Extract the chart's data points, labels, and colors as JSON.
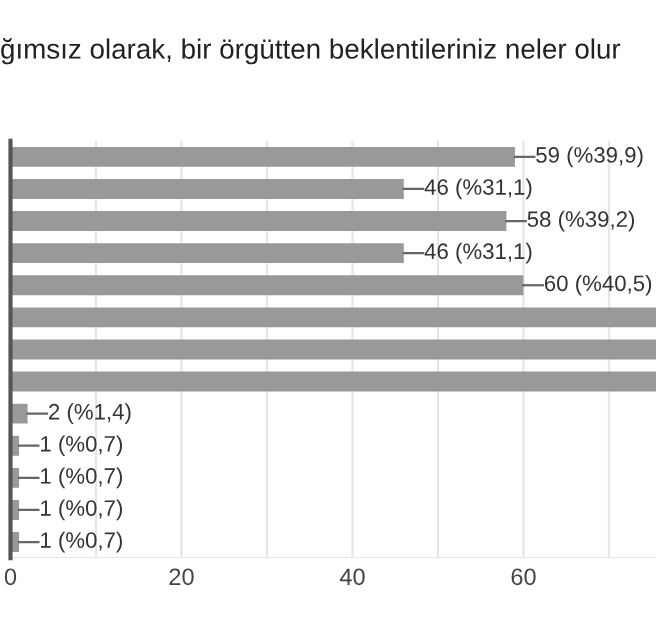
{
  "chart_data": {
    "type": "bar",
    "orientation": "horizontal",
    "title": "ğımsız olarak, bir örgütten beklentileriniz neler olur",
    "categories": [
      null,
      null,
      null,
      null,
      null,
      null,
      null,
      null,
      null,
      null,
      null,
      null,
      null
    ],
    "values": [
      59,
      46,
      58,
      46,
      60,
      75.5,
      75.5,
      75.5,
      2,
      1,
      1,
      1,
      1
    ],
    "value_labels": [
      "59 (%39,9)",
      "46 (%31,1)",
      "58 (%39,2)",
      "46 (%31,1)",
      "60 (%40,5)",
      null,
      null,
      null,
      "2 (%1,4)",
      "1 (%0,7)",
      "1 (%0,7)",
      "1 (%0,7)",
      "1 (%0,7)"
    ],
    "color": "#999999",
    "xlim": [
      0,
      75.5
    ],
    "xticks": [
      0,
      {
        "value": 10,
        "label": null
      },
      20,
      {
        "value": 30,
        "label": null
      },
      40,
      {
        "value": 50,
        "label": null
      },
      60,
      {
        "value": 70,
        "label": null
      }
    ],
    "grid": "x"
  }
}
